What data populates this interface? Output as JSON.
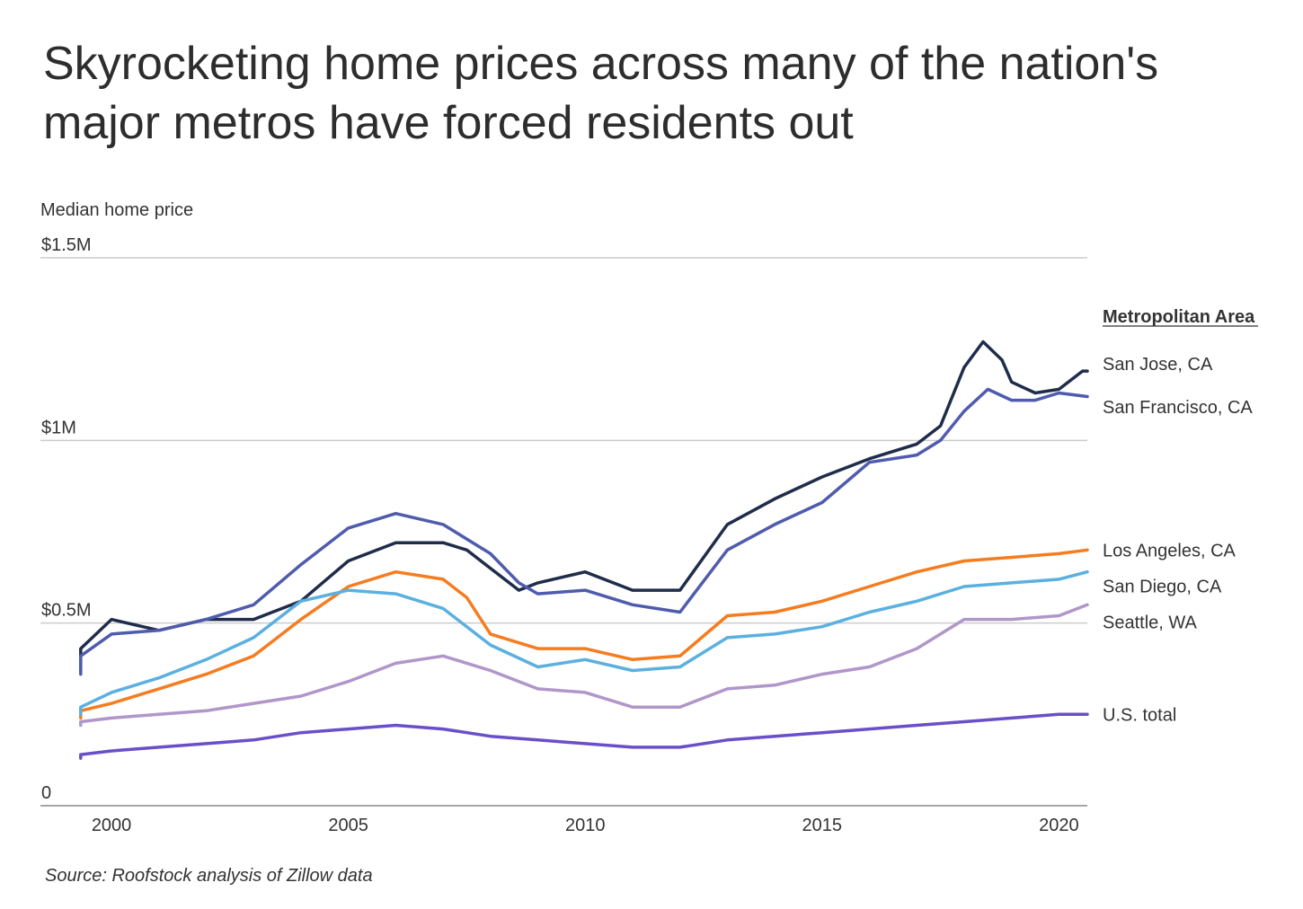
{
  "title_lines": [
    "Skyrocketing home prices across many of the nation's",
    "major metros have forced residents out"
  ],
  "source": "Source: Roofstock analysis of Zillow data",
  "chart_data": {
    "type": "line",
    "title": "Skyrocketing home prices across many of the nation's major metros have forced residents out",
    "ylabel": "Median home price",
    "xlabel": "",
    "xlim": [
      1998.5,
      2020.6
    ],
    "ylim": [
      0,
      1500000
    ],
    "x_ticks": [
      2000,
      2005,
      2010,
      2015,
      2020
    ],
    "x_tick_labels": [
      "2000",
      "2005",
      "2010",
      "2015",
      "2020"
    ],
    "y_ticks": [
      0,
      500000,
      1000000,
      1500000
    ],
    "y_tick_labels": [
      "0",
      "$0.5M",
      "$1M",
      "$1.5M"
    ],
    "grid": "horizontal",
    "legend_title": "Metropolitan Area",
    "legend_position": "right",
    "series": [
      {
        "name": "San Jose, CA",
        "color": "#1f2d4b",
        "x": [
          1998.3,
          1999,
          2000,
          2001,
          2002,
          2003,
          2004,
          2005,
          2006,
          2007,
          2007.5,
          2008,
          2008.6,
          2009,
          2010,
          2011,
          2012,
          2013,
          2014,
          2015,
          2016,
          2017,
          2017.5,
          2018,
          2018.4,
          2018.8,
          2019,
          2019.5,
          2020,
          2020.5,
          2020.6
        ],
        "y": [
          370000,
          430000,
          510000,
          480000,
          510000,
          510000,
          560000,
          670000,
          720000,
          720000,
          700000,
          650000,
          590000,
          610000,
          640000,
          590000,
          590000,
          770000,
          840000,
          900000,
          950000,
          990000,
          1040000,
          1200000,
          1270000,
          1220000,
          1160000,
          1130000,
          1140000,
          1190000,
          1190000
        ]
      },
      {
        "name": "San Francisco, CA",
        "color": "#4f5bad",
        "x": [
          1998.3,
          1999,
          2000,
          2001,
          2002,
          2003,
          2004,
          2005,
          2006,
          2007,
          2008,
          2008.6,
          2009,
          2010,
          2011,
          2012,
          2013,
          2014,
          2015,
          2016,
          2017,
          2017.5,
          2018,
          2018.5,
          2019,
          2019.5,
          2020,
          2020.6
        ],
        "y": [
          360000,
          410000,
          470000,
          480000,
          510000,
          550000,
          660000,
          760000,
          800000,
          770000,
          690000,
          610000,
          580000,
          590000,
          550000,
          530000,
          700000,
          770000,
          830000,
          940000,
          960000,
          1000000,
          1080000,
          1140000,
          1110000,
          1110000,
          1130000,
          1120000
        ]
      },
      {
        "name": "Los Angeles, CA",
        "color": "#f57c1f",
        "x": [
          1998.3,
          1999,
          2000,
          2001,
          2002,
          2003,
          2004,
          2005,
          2006,
          2007,
          2007.5,
          2008,
          2009,
          2010,
          2011,
          2012,
          2013,
          2014,
          2015,
          2016,
          2017,
          2018,
          2019,
          2020,
          2020.6
        ],
        "y": [
          240000,
          260000,
          280000,
          320000,
          360000,
          410000,
          510000,
          600000,
          640000,
          620000,
          570000,
          470000,
          430000,
          430000,
          400000,
          410000,
          520000,
          530000,
          560000,
          600000,
          640000,
          670000,
          680000,
          690000,
          700000
        ]
      },
      {
        "name": "San Diego, CA",
        "color": "#5bb0e0",
        "x": [
          1998.3,
          1999,
          2000,
          2001,
          2002,
          2003,
          2004,
          2005,
          2006,
          2007,
          2007.5,
          2008,
          2009,
          2010,
          2011,
          2012,
          2013,
          2014,
          2015,
          2016,
          2017,
          2018,
          2019,
          2020,
          2020.6
        ],
        "y": [
          250000,
          270000,
          310000,
          350000,
          400000,
          460000,
          560000,
          590000,
          580000,
          540000,
          490000,
          440000,
          380000,
          400000,
          370000,
          380000,
          460000,
          470000,
          490000,
          530000,
          560000,
          600000,
          610000,
          620000,
          640000
        ]
      },
      {
        "name": "Seattle, WA",
        "color": "#b096c9",
        "x": [
          1998.3,
          1999,
          2000,
          2001,
          2002,
          2003,
          2004,
          2005,
          2006,
          2007,
          2008,
          2009,
          2010,
          2011,
          2012,
          2013,
          2014,
          2015,
          2016,
          2017,
          2018,
          2019,
          2020,
          2020.6
        ],
        "y": [
          220000,
          230000,
          240000,
          250000,
          260000,
          280000,
          300000,
          340000,
          390000,
          410000,
          370000,
          320000,
          310000,
          270000,
          270000,
          320000,
          330000,
          360000,
          380000,
          430000,
          510000,
          510000,
          520000,
          550000
        ]
      },
      {
        "name": "U.S. total",
        "color": "#6a4fc8",
        "x": [
          1998.3,
          1999,
          2000,
          2001,
          2002,
          2003,
          2004,
          2005,
          2006,
          2007,
          2008,
          2009,
          2010,
          2011,
          2012,
          2013,
          2014,
          2015,
          2016,
          2017,
          2018,
          2019,
          2020,
          2020.6
        ],
        "y": [
          130000,
          140000,
          150000,
          160000,
          170000,
          180000,
          200000,
          210000,
          220000,
          210000,
          190000,
          180000,
          170000,
          160000,
          160000,
          180000,
          190000,
          200000,
          210000,
          220000,
          230000,
          240000,
          250000,
          250000
        ]
      }
    ]
  }
}
